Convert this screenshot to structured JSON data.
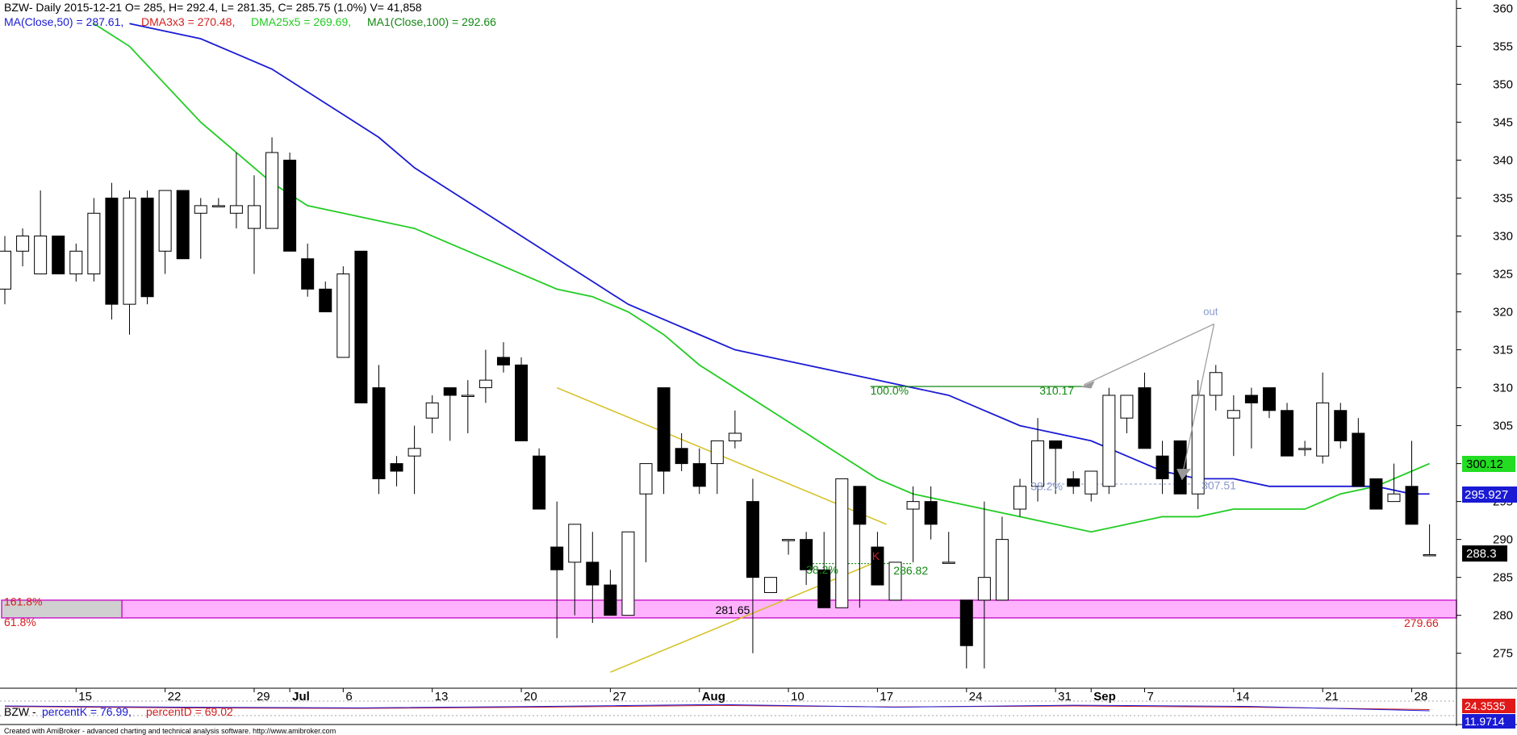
{
  "header": {
    "title_text": "BZW- Daily 2015-12-21 O= 285, H= 292.4, L= 281.35, C= 285.75 (1.0%) V= 41,858",
    "ma50_text": "MA(Close,50) = 287.61,",
    "dma3_text": "DMA3x3 = 270.48,",
    "dma25_text": "DMA25x5 = 269.69,",
    "ma100_text": "MA1(Close,100) = 292.66"
  },
  "colors": {
    "ma50": "#1a1ad4",
    "dma3": "#d42020",
    "dma25": "#22cc22",
    "ma100": "#118811",
    "trendline": "#d4c020",
    "zone_fill": "#ffb3ff",
    "zone_border": "#cc22cc"
  },
  "price_labels": {
    "ma25_value": "300.12",
    "ma50_value": "295.927",
    "last_close": "288.3"
  },
  "annotations": {
    "fib_100": "100.0%",
    "fib_382_top": "38.2%",
    "level_310": "310.17",
    "level_307": "307.51",
    "fib_382_low": "38.2%",
    "level_286": "286.82",
    "k_label": "K",
    "level_281": "281.65",
    "fib_1618": "161.8%",
    "fib_618": "61.8%",
    "level_279": "279.66",
    "out_label": "out"
  },
  "oscillator": {
    "label_sym": "BZW -",
    "label_k": "percentK = 76.99,",
    "label_d": "percentD = 69.02",
    "value_top": "24.3535",
    "value_bottom": "11.9714"
  },
  "footer": {
    "credit": "Created with AmiBroker - advanced charting and technical analysis software. http://www.amibroker.com"
  },
  "chart_data": {
    "type": "candlestick",
    "y_ticks": [
      275,
      280,
      285,
      290,
      295,
      300,
      305,
      310,
      315,
      320,
      325,
      330,
      335,
      340,
      345,
      350,
      355,
      360
    ],
    "ylim": [
      270.5,
      361
    ],
    "x_tick_labels": [
      {
        "label": "15",
        "day": 4
      },
      {
        "label": "22",
        "day": 9
      },
      {
        "label": "29",
        "day": 14
      },
      {
        "label": "Jul",
        "day": 16
      },
      {
        "label": "6",
        "day": 19
      },
      {
        "label": "13",
        "day": 24
      },
      {
        "label": "20",
        "day": 29
      },
      {
        "label": "27",
        "day": 34
      },
      {
        "label": "Aug",
        "day": 39
      },
      {
        "label": "10",
        "day": 44
      },
      {
        "label": "17",
        "day": 49
      },
      {
        "label": "24",
        "day": 54
      },
      {
        "label": "31",
        "day": 59
      },
      {
        "label": "Sep",
        "day": 61
      },
      {
        "label": "7",
        "day": 64
      },
      {
        "label": "14",
        "day": 69
      },
      {
        "label": "21",
        "day": 74
      },
      {
        "label": "28",
        "day": 79
      }
    ],
    "candles": [
      {
        "o": 323,
        "h": 330,
        "l": 321,
        "c": 328
      },
      {
        "o": 328,
        "h": 331,
        "l": 326,
        "c": 330
      },
      {
        "o": 325,
        "h": 336,
        "l": 325,
        "c": 330
      },
      {
        "o": 330,
        "h": 330,
        "l": 325,
        "c": 325
      },
      {
        "o": 325,
        "h": 329,
        "l": 324,
        "c": 328
      },
      {
        "o": 325,
        "h": 335,
        "l": 324,
        "c": 333
      },
      {
        "o": 335,
        "h": 337,
        "l": 319,
        "c": 321
      },
      {
        "o": 321,
        "h": 336,
        "l": 317,
        "c": 335
      },
      {
        "o": 335,
        "h": 336,
        "l": 321,
        "c": 322
      },
      {
        "o": 328,
        "h": 336,
        "l": 325,
        "c": 336
      },
      {
        "o": 336,
        "h": 336,
        "l": 327,
        "c": 327
      },
      {
        "o": 333,
        "h": 335,
        "l": 327,
        "c": 334
      },
      {
        "o": 334,
        "h": 335,
        "l": 334,
        "c": 334
      },
      {
        "o": 333,
        "h": 341,
        "l": 331,
        "c": 334
      },
      {
        "o": 331,
        "h": 338,
        "l": 325,
        "c": 334
      },
      {
        "o": 331,
        "h": 343,
        "l": 331,
        "c": 341
      },
      {
        "o": 340,
        "h": 341,
        "l": 328,
        "c": 328
      },
      {
        "o": 327,
        "h": 329,
        "l": 322,
        "c": 323
      },
      {
        "o": 323,
        "h": 324,
        "l": 320,
        "c": 320
      },
      {
        "o": 314,
        "h": 326,
        "l": 314,
        "c": 325
      },
      {
        "o": 328,
        "h": 328,
        "l": 308,
        "c": 308
      },
      {
        "o": 310,
        "h": 313,
        "l": 296,
        "c": 298
      },
      {
        "o": 300,
        "h": 301,
        "l": 297,
        "c": 299
      },
      {
        "o": 301,
        "h": 305,
        "l": 296,
        "c": 302
      },
      {
        "o": 306,
        "h": 309,
        "l": 304,
        "c": 308
      },
      {
        "o": 310,
        "h": 310,
        "l": 303,
        "c": 309
      },
      {
        "o": 309,
        "h": 311,
        "l": 304,
        "c": 309
      },
      {
        "o": 310,
        "h": 315,
        "l": 308,
        "c": 311
      },
      {
        "o": 314,
        "h": 316,
        "l": 312,
        "c": 313
      },
      {
        "o": 313,
        "h": 314,
        "l": 303,
        "c": 303
      },
      {
        "o": 301,
        "h": 302,
        "l": 294,
        "c": 294
      },
      {
        "o": 289,
        "h": 295,
        "l": 277,
        "c": 286
      },
      {
        "o": 287,
        "h": 292,
        "l": 280,
        "c": 292
      },
      {
        "o": 287,
        "h": 291,
        "l": 279,
        "c": 284
      },
      {
        "o": 284,
        "h": 286,
        "l": 280,
        "c": 280
      },
      {
        "o": 280,
        "h": 291,
        "l": 280,
        "c": 291
      },
      {
        "o": 296,
        "h": 300,
        "l": 287,
        "c": 300
      },
      {
        "o": 310,
        "h": 310,
        "l": 296,
        "c": 299
      },
      {
        "o": 302,
        "h": 304,
        "l": 299,
        "c": 300
      },
      {
        "o": 300,
        "h": 302,
        "l": 296,
        "c": 297
      },
      {
        "o": 300,
        "h": 303,
        "l": 296,
        "c": 303
      },
      {
        "o": 303,
        "h": 307,
        "l": 302,
        "c": 304
      },
      {
        "o": 295,
        "h": 298,
        "l": 275,
        "c": 285
      },
      {
        "o": 283,
        "h": 285,
        "l": 283,
        "c": 285
      },
      {
        "o": 290,
        "h": 290,
        "l": 288,
        "c": 290
      },
      {
        "o": 290,
        "h": 291,
        "l": 284,
        "c": 286
      },
      {
        "o": 286,
        "h": 291,
        "l": 281,
        "c": 281
      },
      {
        "o": 281,
        "h": 298,
        "l": 281,
        "c": 298
      },
      {
        "o": 297,
        "h": 297,
        "l": 281,
        "c": 292
      },
      {
        "o": 289,
        "h": 291,
        "l": 284,
        "c": 284
      },
      {
        "o": 282,
        "h": 287,
        "l": 282,
        "c": 287
      },
      {
        "o": 294,
        "h": 297,
        "l": 287,
        "c": 295
      },
      {
        "o": 295,
        "h": 297,
        "l": 290,
        "c": 292
      },
      {
        "o": 287,
        "h": 291,
        "l": 287,
        "c": 287
      },
      {
        "o": 282,
        "h": 282,
        "l": 273,
        "c": 276
      },
      {
        "o": 282,
        "h": 295,
        "l": 273,
        "c": 285
      },
      {
        "o": 282,
        "h": 293,
        "l": 282,
        "c": 290
      },
      {
        "o": 294,
        "h": 298,
        "l": 293,
        "c": 297
      },
      {
        "o": 297,
        "h": 306,
        "l": 295,
        "c": 303
      },
      {
        "o": 303,
        "h": 303,
        "l": 296,
        "c": 302
      },
      {
        "o": 298,
        "h": 299,
        "l": 296,
        "c": 297
      },
      {
        "o": 296,
        "h": 299,
        "l": 295,
        "c": 299
      },
      {
        "o": 297,
        "h": 310,
        "l": 296,
        "c": 309
      },
      {
        "o": 306,
        "h": 309,
        "l": 304,
        "c": 309
      },
      {
        "o": 310,
        "h": 312,
        "l": 302,
        "c": 302
      },
      {
        "o": 301,
        "h": 303,
        "l": 296,
        "c": 298
      },
      {
        "o": 303,
        "h": 303,
        "l": 296,
        "c": 296
      },
      {
        "o": 296,
        "h": 311,
        "l": 294,
        "c": 309
      },
      {
        "o": 309,
        "h": 313,
        "l": 307,
        "c": 312
      },
      {
        "o": 306,
        "h": 309,
        "l": 301,
        "c": 307
      },
      {
        "o": 309,
        "h": 310,
        "l": 302,
        "c": 308
      },
      {
        "o": 310,
        "h": 310,
        "l": 306,
        "c": 307
      },
      {
        "o": 307,
        "h": 308,
        "l": 301,
        "c": 301
      },
      {
        "o": 302,
        "h": 303,
        "l": 301,
        "c": 302
      },
      {
        "o": 301,
        "h": 312,
        "l": 300,
        "c": 308
      },
      {
        "o": 307,
        "h": 308,
        "l": 302,
        "c": 303
      },
      {
        "o": 304,
        "h": 306,
        "l": 297,
        "c": 297
      },
      {
        "o": 298,
        "h": 298,
        "l": 294,
        "c": 294
      },
      {
        "o": 295,
        "h": 300,
        "l": 295,
        "c": 296
      },
      {
        "o": 297,
        "h": 303,
        "l": 292,
        "c": 292
      },
      {
        "o": 288,
        "h": 292,
        "l": 288,
        "c": 288
      }
    ],
    "ma50": [
      [
        7,
        358
      ],
      [
        9,
        357
      ],
      [
        11,
        356
      ],
      [
        13,
        354
      ],
      [
        15,
        352
      ],
      [
        17,
        349
      ],
      [
        19,
        346
      ],
      [
        21,
        343
      ],
      [
        23,
        339
      ],
      [
        25,
        336
      ],
      [
        27,
        333
      ],
      [
        29,
        330
      ],
      [
        31,
        327
      ],
      [
        33,
        324
      ],
      [
        35,
        321
      ],
      [
        37,
        319
      ],
      [
        39,
        317
      ],
      [
        41,
        315
      ],
      [
        43,
        314
      ],
      [
        45,
        313
      ],
      [
        47,
        312
      ],
      [
        49,
        311
      ],
      [
        51,
        310
      ],
      [
        53,
        309
      ],
      [
        55,
        307
      ],
      [
        57,
        305
      ],
      [
        59,
        304
      ],
      [
        61,
        303
      ],
      [
        63,
        301
      ],
      [
        65,
        299
      ],
      [
        67,
        298
      ],
      [
        69,
        298
      ],
      [
        71,
        297
      ],
      [
        73,
        297
      ],
      [
        75,
        297
      ],
      [
        77,
        297
      ],
      [
        79,
        296
      ],
      [
        80,
        296
      ]
    ],
    "ma25": [
      [
        5,
        358
      ],
      [
        7,
        355
      ],
      [
        9,
        350
      ],
      [
        11,
        345
      ],
      [
        13,
        341
      ],
      [
        15,
        337
      ],
      [
        17,
        334
      ],
      [
        19,
        333
      ],
      [
        21,
        332
      ],
      [
        23,
        331
      ],
      [
        25,
        329
      ],
      [
        27,
        327
      ],
      [
        29,
        325
      ],
      [
        31,
        323
      ],
      [
        33,
        322
      ],
      [
        35,
        320
      ],
      [
        37,
        317
      ],
      [
        39,
        313
      ],
      [
        41,
        310
      ],
      [
        43,
        307
      ],
      [
        45,
        304
      ],
      [
        47,
        301
      ],
      [
        49,
        298
      ],
      [
        51,
        296
      ],
      [
        53,
        295
      ],
      [
        55,
        294
      ],
      [
        57,
        293
      ],
      [
        59,
        292
      ],
      [
        61,
        291
      ],
      [
        63,
        292
      ],
      [
        65,
        293
      ],
      [
        67,
        293
      ],
      [
        69,
        294
      ],
      [
        71,
        294
      ],
      [
        73,
        294
      ],
      [
        75,
        296
      ],
      [
        77,
        297
      ],
      [
        79,
        299
      ],
      [
        80,
        300
      ]
    ],
    "oscillator_k": [
      [
        0,
        60
      ],
      [
        10,
        55
      ],
      [
        20,
        52
      ],
      [
        30,
        58
      ],
      [
        40,
        66
      ],
      [
        50,
        55
      ],
      [
        60,
        63
      ],
      [
        70,
        58
      ],
      [
        80,
        40
      ]
    ],
    "oscillator_d": [
      [
        0,
        58
      ],
      [
        10,
        52
      ],
      [
        20,
        50
      ],
      [
        30,
        55
      ],
      [
        40,
        62
      ],
      [
        50,
        56
      ],
      [
        60,
        60
      ],
      [
        70,
        55
      ],
      [
        80,
        45
      ]
    ]
  }
}
